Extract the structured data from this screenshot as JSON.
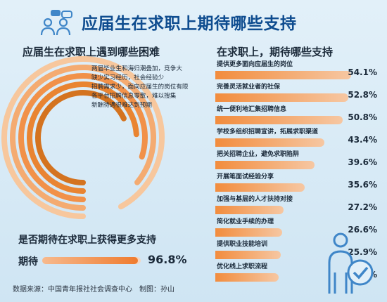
{
  "title": "应届生在求职上期待哪些支持",
  "left_title": "应届生在求职上遇到哪些困难",
  "right_title": "在求职上，期待哪些支持",
  "expect_title": "是否期待在求职上获得更多支持",
  "source": "数据来源：中国青年报社社会调查中心　制图：孙山",
  "colors": {
    "accent": "#ef7b2e",
    "title": "#0e4c8f",
    "icon_blue": "#3f86c8"
  },
  "icons": [
    "people-chat-icon",
    "person-check-icon"
  ],
  "chart_data": [
    {
      "type": "bar",
      "title": "应届生在求职上遇到哪些困难",
      "categories": [
        "两届毕业生和海归潮叠加，竞争大",
        "缺少实习经历，社会经验少",
        "招聘需求少，面向应届生的岗位有限",
        "各平台招聘信息零散，难以搜集",
        "新酬待遇很难达到预期"
      ],
      "values": [
        0.92,
        0.86,
        0.8,
        0.74,
        0.68
      ]
    },
    {
      "type": "bar",
      "title": "在求职上，期待哪些支持",
      "categories": [
        "提供更多面向应届生的岗位",
        "完善灵活就业者的社保",
        "统一便利地汇集招聘信息",
        "学校多组织招聘宣讲，拓展求职渠道",
        "把关招聘企业，避免求职陷阱",
        "开展笔面试经验分享",
        "加强与基层的人才扶持对接",
        "简化就业手续的办理",
        "提供职业技能培训",
        "优化线上求职流程"
      ],
      "values": [
        54.1,
        52.8,
        50.8,
        43.4,
        39.6,
        35.6,
        27.2,
        26.6,
        25.9,
        25.2
      ],
      "value_labels": [
        "54.1%",
        "52.8%",
        "50.8%",
        "43.4%",
        "39.6%",
        "35.6%",
        "27.2%",
        "26.6%",
        "25.9%",
        "25.2%"
      ],
      "xlim": [
        0,
        56
      ]
    },
    {
      "type": "bar",
      "title": "是否期待在求职上获得更多支持",
      "categories": [
        "期待"
      ],
      "values": [
        96.8
      ],
      "value_labels": [
        "96.8%"
      ]
    }
  ]
}
